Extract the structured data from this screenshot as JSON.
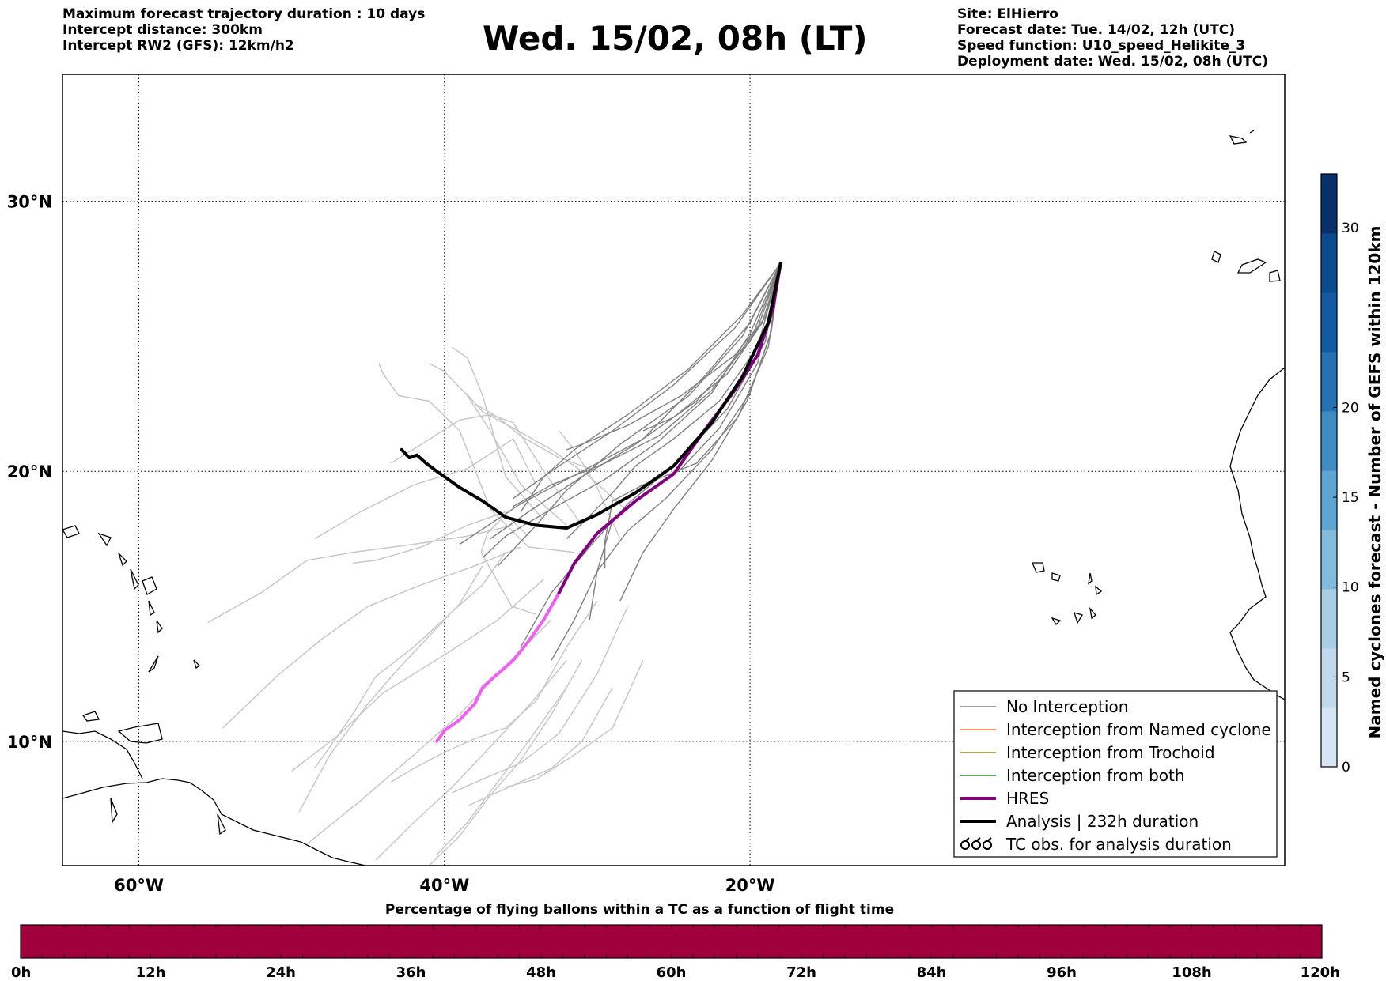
{
  "header_left": [
    "Maximum forecast trajectory duration : 10 days",
    "Intercept distance: 300km",
    "Intercept RW2 (GFS):  12km/h2"
  ],
  "title": "Wed. 15/02, 08h (LT)",
  "header_right": [
    "Site: ElHierro",
    "Forecast date: Tue. 14/02, 12h (UTC)",
    "Speed function: U10_speed_Helikite_3",
    "Deployment date: Wed. 15/02, 08h (UTC)"
  ],
  "map": {
    "lon_range": [
      -65,
      15
    ],
    "lat_range": [
      5.4,
      34.7
    ],
    "lon_ticks": [
      {
        "value": -60,
        "label": "60°W"
      },
      {
        "value": -40,
        "label": "40°W"
      },
      {
        "value": -20,
        "label": "20°W"
      }
    ],
    "lat_ticks": [
      {
        "value": 10,
        "label": "10°N"
      },
      {
        "value": 20,
        "label": "20°N"
      },
      {
        "value": 30,
        "label": "30°N"
      }
    ],
    "grid": true
  },
  "legend": {
    "position": "lower-right",
    "items": [
      {
        "label": "No Interception",
        "color": "#808080"
      },
      {
        "label": "Interception from Named cyclone",
        "color": "#ff6a2a"
      },
      {
        "label": "Interception from Trochoid",
        "color": "#8a8a2a"
      },
      {
        "label": "Interception from both",
        "color": "#2a8a2a"
      },
      {
        "label": "HRES",
        "color": "#800080"
      },
      {
        "label": "Analysis | 232h duration",
        "color": "#000000"
      },
      {
        "label": "TC obs. for analysis duration",
        "color": "#000000",
        "icon": "cyclone-symbol-icon"
      }
    ]
  },
  "colorbar": {
    "title": "Named cyclones forecast - Number of GEFS within 120km",
    "ticks": [
      "0",
      "5",
      "10",
      "15",
      "20",
      "30"
    ],
    "colors": [
      "#d6e5f4",
      "#c1d8ed",
      "#a9cde4",
      "#83bbdc",
      "#5ea5d1",
      "#3f8cc2",
      "#2671b3",
      "#125aa1",
      "#0a4a8d",
      "#08306b"
    ]
  },
  "time_bar": {
    "title": "Percentage of flying ballons within a TC as a function of flight time",
    "ticks": [
      "0h",
      "12h",
      "24h",
      "36h",
      "48h",
      "60h",
      "72h",
      "84h",
      "96h",
      "108h",
      "120h"
    ],
    "fill_color": "#a0003c"
  },
  "trajectories": {
    "origin": [
      -18.0,
      27.7
    ],
    "hres": [
      [
        -18.0,
        27.7
      ],
      [
        -18.5,
        26.0
      ],
      [
        -19.5,
        24.3
      ],
      [
        -21.0,
        23.0
      ],
      [
        -23.0,
        21.5
      ],
      [
        -25.0,
        19.9
      ],
      [
        -27.5,
        18.9
      ],
      [
        -30.0,
        17.7
      ],
      [
        -31.5,
        16.6
      ],
      [
        -32.5,
        15.5
      ]
    ],
    "hres_light": [
      [
        -32.5,
        15.5
      ],
      [
        -33.5,
        14.5
      ],
      [
        -34.5,
        13.7
      ],
      [
        -35.5,
        13.0
      ],
      [
        -36.5,
        12.5
      ],
      [
        -37.5,
        12.0
      ],
      [
        -38.0,
        11.4
      ],
      [
        -39.0,
        10.8
      ],
      [
        -40.0,
        10.4
      ],
      [
        -40.5,
        10.0
      ]
    ],
    "analysis": [
      [
        -18.0,
        27.7
      ],
      [
        -18.8,
        25.5
      ],
      [
        -20.5,
        23.5
      ],
      [
        -22.5,
        21.8
      ],
      [
        -25.0,
        20.2
      ],
      [
        -27.5,
        19.2
      ],
      [
        -30.0,
        18.4
      ],
      [
        -32.0,
        17.9
      ],
      [
        -34.0,
        18.0
      ],
      [
        -36.0,
        18.3
      ],
      [
        -37.5,
        18.9
      ],
      [
        -39.0,
        19.4
      ],
      [
        -40.5,
        20.0
      ],
      [
        -41.2,
        20.3
      ],
      [
        -41.8,
        20.6
      ],
      [
        -42.3,
        20.5
      ],
      [
        -42.8,
        20.8
      ]
    ],
    "no_interception": [
      [
        [
          -18.0,
          27.7
        ],
        [
          -20.0,
          25.5
        ],
        [
          -23.0,
          23.5
        ],
        [
          -27.0,
          21.2
        ],
        [
          -31.0,
          20.0
        ],
        [
          -35.0,
          18.8
        ],
        [
          -39.0,
          17.3
        ]
      ],
      [
        [
          -18.0,
          27.7
        ],
        [
          -20.5,
          25.0
        ],
        [
          -24.0,
          22.8
        ],
        [
          -28.5,
          21.0
        ],
        [
          -32.0,
          19.3
        ],
        [
          -34.0,
          18.0
        ],
        [
          -36.5,
          16.5
        ]
      ],
      [
        [
          -18.0,
          27.7
        ],
        [
          -20.5,
          25.8
        ],
        [
          -24.0,
          23.8
        ],
        [
          -28.0,
          22.1
        ],
        [
          -31.5,
          20.8
        ],
        [
          -33.5,
          19.8
        ],
        [
          -35.0,
          18.5
        ]
      ],
      [
        [
          -18.0,
          27.7
        ],
        [
          -19.0,
          24.8
        ],
        [
          -21.5,
          22.3
        ],
        [
          -25.0,
          20.2
        ],
        [
          -28.0,
          18.8
        ],
        [
          -30.5,
          17.2
        ],
        [
          -33.0,
          15.5
        ],
        [
          -35.0,
          13.5
        ]
      ],
      [
        [
          -18.0,
          27.7
        ],
        [
          -19.5,
          25.3
        ],
        [
          -22.5,
          23.0
        ],
        [
          -26.0,
          21.3
        ],
        [
          -29.5,
          20.3
        ],
        [
          -33.0,
          19.5
        ],
        [
          -35.5,
          18.7
        ]
      ],
      [
        [
          -18.0,
          27.7
        ],
        [
          -19.0,
          25.7
        ],
        [
          -21.0,
          24.3
        ],
        [
          -24.5,
          22.8
        ],
        [
          -28.0,
          21.7
        ],
        [
          -31.0,
          21.0
        ],
        [
          -32.0,
          20.8
        ]
      ],
      [
        [
          -18.0,
          27.7
        ],
        [
          -18.6,
          25.2
        ],
        [
          -20.0,
          22.9
        ],
        [
          -22.5,
          20.8
        ],
        [
          -25.5,
          19.0
        ],
        [
          -28.0,
          17.8
        ],
        [
          -30.0,
          16.3
        ],
        [
          -31.5,
          14.5
        ],
        [
          -33.0,
          13.0
        ]
      ],
      [
        [
          -18.0,
          27.7
        ],
        [
          -19.5,
          24.6
        ],
        [
          -22.0,
          22.6
        ],
        [
          -25.0,
          21.2
        ],
        [
          -27.5,
          20.2
        ],
        [
          -29.0,
          19.2
        ],
        [
          -32.0,
          17.5
        ]
      ],
      [
        [
          -18.0,
          27.7
        ],
        [
          -18.7,
          25.0
        ],
        [
          -20.2,
          22.6
        ],
        [
          -22.5,
          20.4
        ],
        [
          -25.0,
          18.6
        ],
        [
          -27.0,
          17.0
        ],
        [
          -28.5,
          15.2
        ]
      ],
      [
        [
          -18.0,
          27.7
        ],
        [
          -20.0,
          24.8
        ],
        [
          -23.5,
          22.6
        ],
        [
          -27.5,
          21.0
        ],
        [
          -31.0,
          19.8
        ],
        [
          -34.5,
          18.5
        ],
        [
          -37.0,
          17.5
        ]
      ],
      [
        [
          -18.0,
          27.7
        ],
        [
          -21.0,
          25.3
        ],
        [
          -25.0,
          23.2
        ],
        [
          -29.0,
          21.5
        ],
        [
          -32.5,
          20.2
        ],
        [
          -35.5,
          19.0
        ]
      ],
      [
        [
          -18.0,
          27.7
        ],
        [
          -19.2,
          25.5
        ],
        [
          -21.5,
          23.6
        ],
        [
          -25.0,
          22.0
        ],
        [
          -27.0,
          21.5
        ]
      ],
      [
        [
          -18.0,
          27.7
        ],
        [
          -19.5,
          24.0
        ],
        [
          -22.0,
          21.6
        ],
        [
          -24.5,
          20.1
        ],
        [
          -27.0,
          19.1
        ],
        [
          -29.0,
          18.2
        ],
        [
          -30.0,
          16.3
        ],
        [
          -30.5,
          14.5
        ]
      ],
      [
        [
          -18.0,
          27.7
        ],
        [
          -20.0,
          25.1
        ],
        [
          -22.5,
          22.9
        ],
        [
          -26.0,
          21.1
        ],
        [
          -29.5,
          19.7
        ],
        [
          -33.0,
          18.6
        ],
        [
          -36.0,
          17.6
        ],
        [
          -37.5,
          16.8
        ]
      ],
      [
        [
          -18.0,
          27.7
        ],
        [
          -18.8,
          24.6
        ],
        [
          -20.8,
          22.0
        ],
        [
          -23.5,
          20.3
        ],
        [
          -27.0,
          19.5
        ],
        [
          -29.0,
          18.9
        ],
        [
          -29.5,
          17.4
        ],
        [
          -29.5,
          16.4
        ]
      ]
    ],
    "ensemble_light": [
      [
        [
          -35.5,
          18.0
        ],
        [
          -38.5,
          17.6
        ],
        [
          -42.0,
          17.3
        ],
        [
          -46.0,
          17.0
        ],
        [
          -49.0,
          16.7
        ],
        [
          -52.0,
          15.5
        ],
        [
          -55.5,
          14.4
        ]
      ],
      [
        [
          -35.0,
          17.2
        ],
        [
          -38.0,
          16.5
        ],
        [
          -41.5,
          15.8
        ],
        [
          -45.0,
          15.0
        ],
        [
          -48.0,
          13.8
        ],
        [
          -51.0,
          12.4
        ],
        [
          -54.5,
          10.5
        ]
      ],
      [
        [
          -33.5,
          16.0
        ],
        [
          -36.5,
          14.5
        ],
        [
          -40.0,
          13.2
        ],
        [
          -44.0,
          11.8
        ],
        [
          -47.0,
          10.2
        ],
        [
          -50.0,
          8.9
        ]
      ],
      [
        [
          -33.0,
          14.5
        ],
        [
          -36.0,
          12.8
        ],
        [
          -39.0,
          11.0
        ],
        [
          -42.0,
          9.5
        ],
        [
          -45.5,
          7.8
        ],
        [
          -49.0,
          6.2
        ]
      ],
      [
        [
          -32.0,
          13.0
        ],
        [
          -34.5,
          11.3
        ],
        [
          -37.0,
          9.8
        ],
        [
          -39.5,
          8.3
        ],
        [
          -42.0,
          7.0
        ],
        [
          -44.5,
          5.6
        ]
      ],
      [
        [
          -32.0,
          12.0
        ],
        [
          -34.5,
          10.0
        ],
        [
          -36.5,
          8.5
        ],
        [
          -38.5,
          7.0
        ],
        [
          -40.5,
          5.8
        ]
      ],
      [
        [
          -31.0,
          13.0
        ],
        [
          -33.0,
          11.0
        ],
        [
          -35.0,
          9.3
        ],
        [
          -37.0,
          8.0
        ],
        [
          -39.0,
          6.5
        ],
        [
          -41.0,
          5.4
        ]
      ],
      [
        [
          -29.0,
          12.0
        ],
        [
          -31.0,
          10.0
        ],
        [
          -33.0,
          9.0
        ],
        [
          -35.0,
          8.5
        ],
        [
          -37.0,
          8.0
        ],
        [
          -38.5,
          7.6
        ]
      ],
      [
        [
          -27.0,
          13.0
        ],
        [
          -29.0,
          10.5
        ],
        [
          -31.5,
          9.5
        ],
        [
          -34.0,
          8.6
        ],
        [
          -36.0,
          8.3
        ]
      ],
      [
        [
          -31.5,
          17.0
        ],
        [
          -34.5,
          17.2
        ],
        [
          -37.0,
          18.6
        ],
        [
          -39.0,
          21.5
        ],
        [
          -41.0,
          22.6
        ],
        [
          -43.0,
          22.8
        ],
        [
          -44.0,
          23.6
        ],
        [
          -44.3,
          24.0
        ]
      ],
      [
        [
          -32.0,
          18.0
        ],
        [
          -35.0,
          19.5
        ],
        [
          -37.0,
          21.5
        ],
        [
          -38.5,
          22.8
        ],
        [
          -40.0,
          23.7
        ],
        [
          -41.0,
          24.0
        ]
      ],
      [
        [
          -33.5,
          18.2
        ],
        [
          -36.0,
          19.8
        ],
        [
          -37.5,
          22.8
        ],
        [
          -38.5,
          24.2
        ],
        [
          -39.5,
          24.6
        ]
      ],
      [
        [
          -31.0,
          18.0
        ],
        [
          -33.5,
          20.0
        ],
        [
          -35.5,
          21.8
        ],
        [
          -37.0,
          22.1
        ],
        [
          -39.0,
          21.9
        ],
        [
          -41.5,
          21.0
        ],
        [
          -43.5,
          20.3
        ]
      ],
      [
        [
          -34.0,
          19.5
        ],
        [
          -35.5,
          21.2
        ],
        [
          -38.5,
          20.1
        ],
        [
          -42.0,
          19.5
        ],
        [
          -45.5,
          18.5
        ],
        [
          -48.5,
          17.5
        ]
      ],
      [
        [
          -28.0,
          18.5
        ],
        [
          -30.5,
          19.8
        ],
        [
          -33.0,
          20.8
        ],
        [
          -35.5,
          21.6
        ],
        [
          -37.5,
          22.2
        ],
        [
          -38.6,
          22.9
        ]
      ],
      [
        [
          -36.0,
          18.5
        ],
        [
          -38.5,
          18.0
        ],
        [
          -41.5,
          17.2
        ],
        [
          -44.5,
          16.7
        ],
        [
          -46.0,
          16.6
        ]
      ],
      [
        [
          -30.0,
          20.0
        ],
        [
          -32.5,
          20.5
        ],
        [
          -35.0,
          21.3
        ],
        [
          -36.5,
          22.0
        ],
        [
          -38.0,
          22.5
        ]
      ],
      [
        [
          -28.5,
          17.5
        ],
        [
          -30.0,
          19.4
        ],
        [
          -31.5,
          20.8
        ],
        [
          -32.5,
          21.5
        ]
      ],
      [
        [
          -36.0,
          17.0
        ],
        [
          -37.5,
          15.8
        ],
        [
          -39.5,
          14.8
        ],
        [
          -42.0,
          13.5
        ],
        [
          -44.5,
          12.4
        ],
        [
          -46.0,
          11.0
        ],
        [
          -48.5,
          9.0
        ]
      ],
      [
        [
          -37.5,
          16.5
        ],
        [
          -39.0,
          15.1
        ],
        [
          -41.0,
          13.9
        ],
        [
          -43.0,
          12.7
        ],
        [
          -45.0,
          11.4
        ],
        [
          -47.5,
          9.5
        ],
        [
          -49.5,
          7.4
        ]
      ],
      [
        [
          -30.0,
          15.2
        ],
        [
          -32.0,
          13.5
        ],
        [
          -34.0,
          11.5
        ],
        [
          -36.0,
          10.5
        ],
        [
          -38.0,
          10.1
        ],
        [
          -40.0,
          9.6
        ],
        [
          -42.0,
          9.0
        ],
        [
          -43.5,
          8.5
        ]
      ],
      [
        [
          -34.5,
          17.6
        ],
        [
          -36.0,
          18.4
        ],
        [
          -37.2,
          17.7
        ],
        [
          -37.6,
          17.0
        ],
        [
          -36.7,
          16.1
        ],
        [
          -35.6,
          15.0
        ],
        [
          -34.0,
          14.7
        ]
      ],
      [
        [
          -28.0,
          15.0
        ],
        [
          -30.0,
          12.5
        ],
        [
          -32.5,
          10.3
        ],
        [
          -35.0,
          9.2
        ],
        [
          -37.5,
          8.6
        ],
        [
          -39.5,
          8.1
        ]
      ]
    ]
  },
  "obs_tick_line": 0
}
